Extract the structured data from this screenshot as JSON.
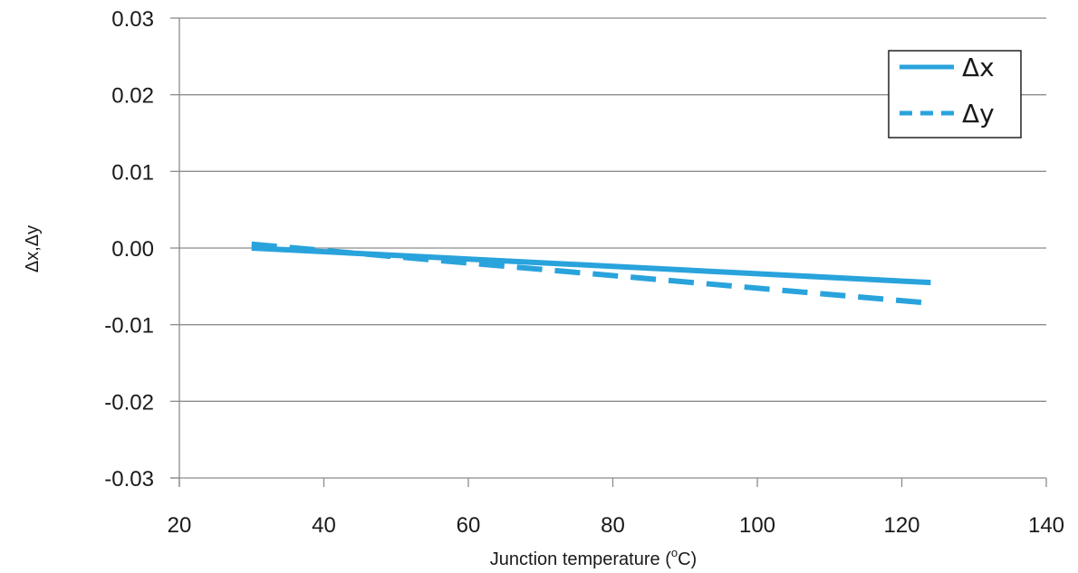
{
  "chart_data": {
    "type": "line",
    "title": "",
    "xlabel": "Junction temperature (°C)",
    "xlabel_main": "Junction temperature (",
    "xlabel_unit_sup": "o",
    "xlabel_unit_tail": "C)",
    "ylabel": "Δx,Δy",
    "xlim": [
      20,
      140
    ],
    "ylim": [
      -0.03,
      0.03
    ],
    "x_ticks": [
      "20",
      "40",
      "60",
      "80",
      "100",
      "120",
      "140"
    ],
    "x_tick_values": [
      20,
      40,
      60,
      80,
      100,
      120,
      140
    ],
    "y_ticks": [
      "0.03",
      "0.02",
      "0.01",
      "0.00",
      "-0.01",
      "-0.02",
      "-0.03"
    ],
    "y_tick_values": [
      0.03,
      0.02,
      0.01,
      0.0,
      -0.01,
      -0.02,
      -0.03
    ],
    "grid": "horizontal",
    "legend_position": "top-right",
    "series": [
      {
        "name": "Δx",
        "style": "solid",
        "color": "#29a3dc",
        "x": [
          30,
          124
        ],
        "y": [
          0.0,
          -0.0045
        ]
      },
      {
        "name": "Δy",
        "style": "dashed",
        "color": "#29a3dc",
        "x": [
          30,
          124
        ],
        "y": [
          0.0005,
          -0.0072
        ]
      }
    ]
  }
}
